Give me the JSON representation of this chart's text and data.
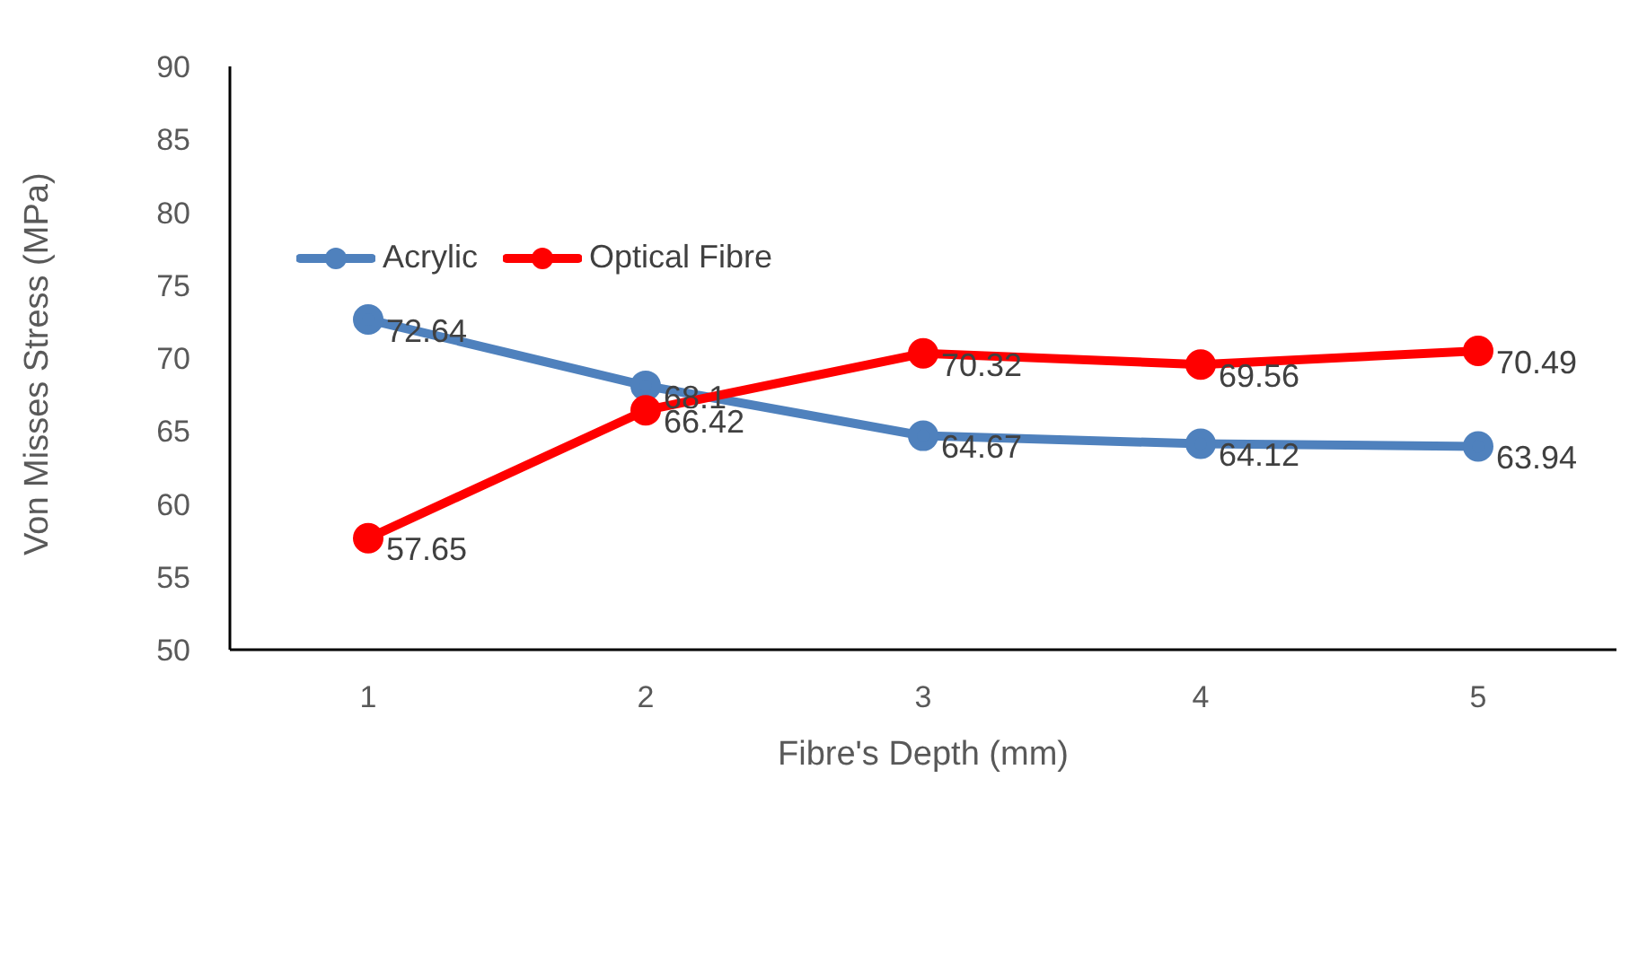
{
  "chart_data": {
    "type": "line",
    "xlabel": "Fibre's Depth (mm)",
    "ylabel": "Von Misses Stress (MPa)",
    "categories": [
      "1",
      "2",
      "3",
      "4",
      "5"
    ],
    "series": [
      {
        "name": "Acrylic",
        "color": "#4f81bd",
        "values": [
          72.64,
          68.1,
          64.67,
          64.12,
          63.94
        ]
      },
      {
        "name": "Optical Fibre",
        "color": "#ff0000",
        "values": [
          57.65,
          66.42,
          70.32,
          69.56,
          70.49
        ]
      }
    ],
    "ylim": [
      50,
      90
    ],
    "yticks": [
      50,
      55,
      60,
      65,
      70,
      75,
      80,
      85,
      90
    ],
    "grid": false,
    "legend": "top left",
    "marker": "circle",
    "line_style": "solid",
    "data_labels": true
  }
}
